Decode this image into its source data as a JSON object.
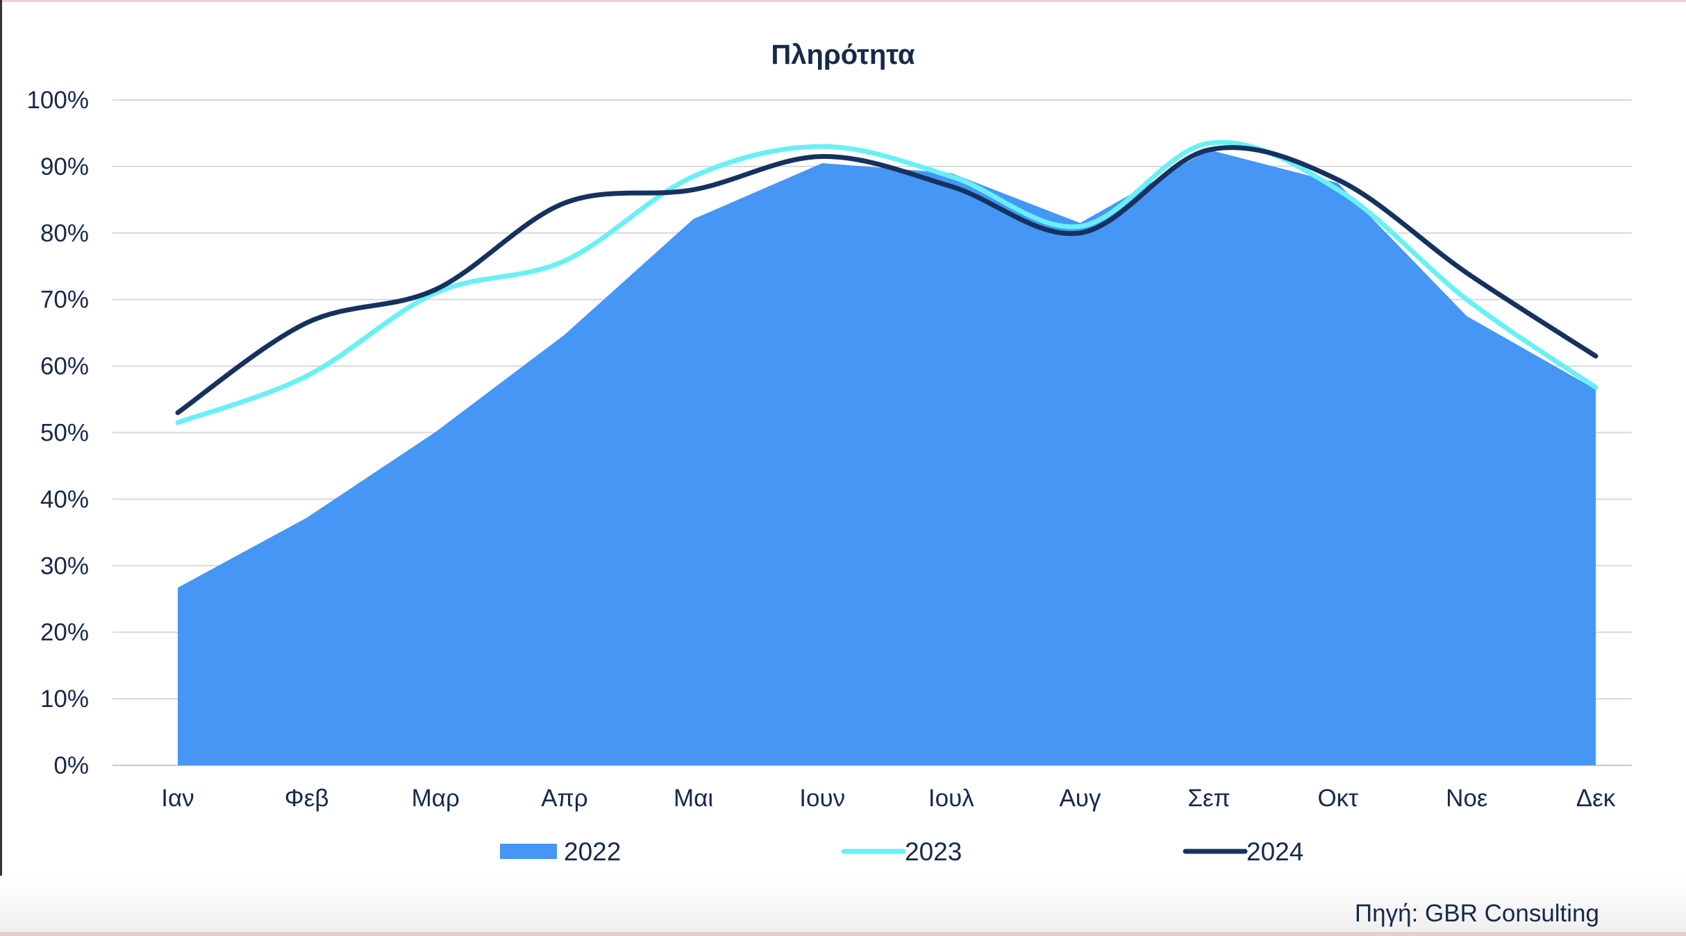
{
  "chart_data": {
    "type": "area",
    "title": "Πληρότητα",
    "xlabel": "",
    "ylabel": "",
    "ylim": [
      0,
      100
    ],
    "yticks": [
      "0%",
      "10%",
      "20%",
      "30%",
      "40%",
      "50%",
      "60%",
      "70%",
      "80%",
      "90%",
      "100%"
    ],
    "categories": [
      "Ιαν",
      "Φεβ",
      "Μαρ",
      "Απρ",
      "Μαι",
      "Ιουν",
      "Ιουλ",
      "Αυγ",
      "Σεπ",
      "Οκτ",
      "Νοε",
      "Δεκ"
    ],
    "grid": true,
    "legend_position": "bottom",
    "series": [
      {
        "name": "2022",
        "kind": "area",
        "color": "#4596f5",
        "values": [
          26.7,
          37.2,
          50.1,
          64.7,
          82.1,
          90.5,
          89.0,
          81.5,
          92.5,
          87.5,
          67.5,
          56.5
        ]
      },
      {
        "name": "2023",
        "kind": "line",
        "color": "#69f0f5",
        "values": [
          51.5,
          58.5,
          71.0,
          75.8,
          88.5,
          93.0,
          88.5,
          81.0,
          93.5,
          86.5,
          70.0,
          56.8
        ]
      },
      {
        "name": "2024",
        "kind": "line",
        "color": "#15325f",
        "values": [
          53.0,
          66.5,
          71.5,
          84.5,
          86.5,
          91.5,
          87.0,
          80.0,
          92.5,
          88.0,
          74.0,
          61.5
        ]
      }
    ]
  },
  "source_text": "Πηγή: GBR Consulting"
}
